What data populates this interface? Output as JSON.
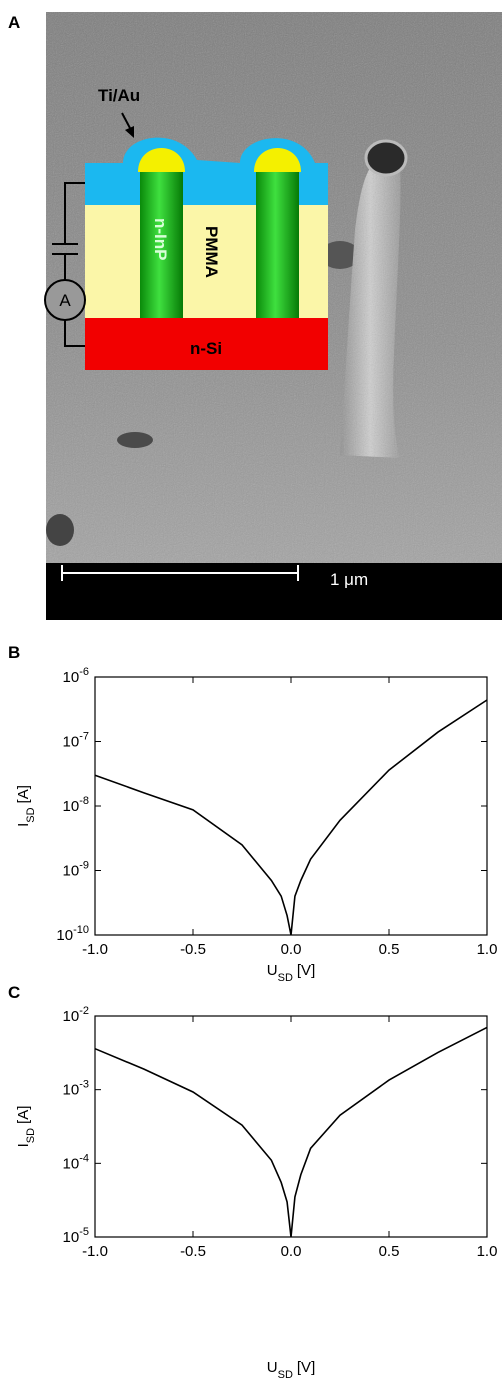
{
  "panel_a": {
    "label": "A",
    "contact": "Ti/Au",
    "nanowire": "n-InP",
    "matrix": "PMMA",
    "substrate": "n-Si",
    "meter": "A",
    "scale_bar": "1 μm"
  },
  "chart_data": [
    {
      "type": "line",
      "panel": "B",
      "xlabel": [
        "U",
        "SD",
        "[V]"
      ],
      "ylabel": [
        "I",
        "SD",
        "[A]"
      ],
      "log_y": true,
      "x": [
        -1,
        -0.75,
        -0.5,
        -0.25,
        -0.1,
        -0.05,
        -0.02,
        0,
        0.02,
        0.05,
        0.1,
        0.25,
        0.5,
        0.75,
        1
      ],
      "series": [
        {
          "color": "#000000",
          "values": [
            3e-08,
            1.6e-08,
            8.7e-09,
            2.5e-09,
            7e-10,
            4e-10,
            2e-10,
            1e-10,
            4e-10,
            7e-10,
            1.5e-09,
            6e-09,
            3.6e-08,
            1.4e-07,
            4.4e-07
          ]
        }
      ],
      "xlim": [
        -1,
        1
      ],
      "ylim": [
        1e-10,
        1e-06
      ],
      "xticks": [
        {
          "value": -1,
          "label": "-1.0"
        },
        -0.5,
        {
          "value": 0,
          "label": "0.0"
        },
        0.5,
        {
          "value": 1,
          "label": "1.0"
        }
      ],
      "yticks": [
        {
          "value": 1e-10,
          "label": "10",
          "exp": "-10"
        },
        {
          "value": 1e-09,
          "label": "10",
          "exp": "-9"
        },
        {
          "value": 1e-08,
          "label": "10",
          "exp": "-8"
        },
        {
          "value": 1e-07,
          "label": "10",
          "exp": "-7"
        },
        {
          "value": 1e-06,
          "label": "10",
          "exp": "-6"
        }
      ]
    },
    {
      "type": "line",
      "panel": "C",
      "xlabel": [
        "U",
        "SD",
        "[V]"
      ],
      "ylabel": [
        "I",
        "SD",
        "[A]"
      ],
      "log_y": true,
      "x": [
        -1,
        -0.75,
        -0.5,
        -0.25,
        -0.1,
        -0.05,
        -0.02,
        0,
        0.02,
        0.05,
        0.1,
        0.25,
        0.5,
        0.75,
        1
      ],
      "series": [
        {
          "color": "#000000",
          "values": [
            0.0036,
            0.0019,
            0.00093,
            0.00033,
            0.00011,
            5.5e-05,
            3e-05,
            1e-05,
            3.5e-05,
            7e-05,
            0.00016,
            0.00045,
            0.00135,
            0.0032,
            0.007
          ]
        }
      ],
      "xlim": [
        -1,
        1
      ],
      "ylim": [
        1e-05,
        0.01
      ],
      "xticks": [
        {
          "value": -1,
          "label": "-1.0"
        },
        -0.5,
        {
          "value": 0,
          "label": "0.0"
        },
        0.5,
        {
          "value": 1,
          "label": "1.0"
        }
      ],
      "yticks": [
        {
          "value": 1e-05,
          "label": "10",
          "exp": "-5"
        },
        {
          "value": 0.0001,
          "label": "10",
          "exp": "-4"
        },
        {
          "value": 0.001,
          "label": "10",
          "exp": "-3"
        },
        {
          "value": 0.01,
          "label": "10",
          "exp": "-2"
        }
      ]
    }
  ]
}
